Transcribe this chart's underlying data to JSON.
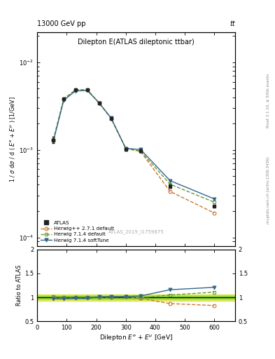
{
  "title_main": "Dilepton E(ATLAS dileptonic ttbar)",
  "header_left": "13000 GeV pp",
  "header_right": "tt",
  "watermark": "ATLAS_2019_I1759875",
  "right_label_top": "Rivet 3.1.10, ≥ 500k events",
  "right_label_bot": "mcplots.cern.ch [arXiv:1306.3436]",
  "xlabel": "Dilepton $E^{e}$ + $E^{\\mu}$ [GeV]",
  "ylabel_main": "1 / σ dσ / d ( $E^{e}$ + $E^{\\mu}$ ) [1/GeV]",
  "ylabel_ratio": "Ratio to ATLAS",
  "x_data": [
    55,
    90,
    130,
    170,
    210,
    250,
    300,
    350,
    450,
    600
  ],
  "atlas_y": [
    0.0013,
    0.0038,
    0.00482,
    0.00485,
    0.0034,
    0.00228,
    0.00102,
    0.00098,
    0.000385,
    0.000228
  ],
  "atlas_yerr": [
    0.0001,
    0.00012,
    0.00012,
    0.00012,
    0.0001,
    8e-05,
    4e-05,
    4e-05,
    1.5e-05,
    8e-06
  ],
  "herwig_pp_y": [
    0.0013,
    0.00382,
    0.00484,
    0.00487,
    0.00342,
    0.0023,
    0.00104,
    0.00096,
    0.000335,
    0.00019
  ],
  "herwig714_def_y": [
    0.00131,
    0.00381,
    0.00483,
    0.00486,
    0.00341,
    0.00229,
    0.00103,
    0.00097,
    0.000405,
    0.000252
  ],
  "herwig714_soft_y": [
    0.00126,
    0.00368,
    0.00472,
    0.00475,
    0.00344,
    0.00232,
    0.00104,
    0.00101,
    0.000445,
    0.000275
  ],
  "ratio_herwig_pp": [
    1.0,
    1.005,
    1.005,
    1.005,
    1.006,
    1.008,
    1.02,
    0.98,
    0.87,
    0.83
  ],
  "ratio_herwig714_def": [
    1.01,
    1.003,
    1.002,
    1.002,
    1.003,
    1.004,
    1.01,
    0.99,
    1.05,
    1.11
  ],
  "ratio_herwig714_soft": [
    0.97,
    0.97,
    0.98,
    0.98,
    1.01,
    1.018,
    1.02,
    1.03,
    1.16,
    1.21
  ],
  "ratio_band_inner": 0.03,
  "ratio_band_outer": 0.065,
  "color_atlas": "#222222",
  "color_herwig_pp": "#cc7733",
  "color_herwig714_def": "#669933",
  "color_herwig714_soft": "#336688",
  "ylim_main": [
    8e-05,
    0.022
  ],
  "ylim_ratio": [
    0.5,
    2.0
  ],
  "xlim": [
    0,
    670
  ]
}
